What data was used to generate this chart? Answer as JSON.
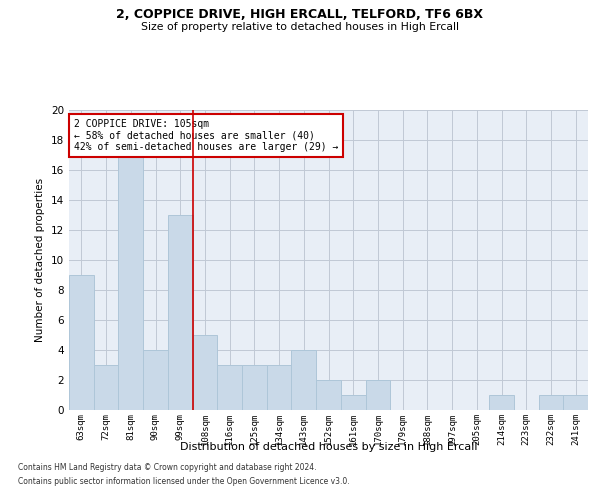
{
  "title1": "2, COPPICE DRIVE, HIGH ERCALL, TELFORD, TF6 6BX",
  "title2": "Size of property relative to detached houses in High Ercall",
  "xlabel": "Distribution of detached houses by size in High Ercall",
  "ylabel": "Number of detached properties",
  "categories": [
    "63sqm",
    "72sqm",
    "81sqm",
    "90sqm",
    "99sqm",
    "108sqm",
    "116sqm",
    "125sqm",
    "134sqm",
    "143sqm",
    "152sqm",
    "161sqm",
    "170sqm",
    "179sqm",
    "188sqm",
    "197sqm",
    "205sqm",
    "214sqm",
    "223sqm",
    "232sqm",
    "241sqm"
  ],
  "values": [
    9,
    3,
    17,
    4,
    13,
    5,
    3,
    3,
    3,
    4,
    2,
    1,
    2,
    0,
    0,
    0,
    0,
    1,
    0,
    1,
    1
  ],
  "bar_color": "#c9d9e8",
  "bar_edge_color": "#aec6d8",
  "vline_color": "#cc0000",
  "annotation_text": "2 COPPICE DRIVE: 105sqm\n← 58% of detached houses are smaller (40)\n42% of semi-detached houses are larger (29) →",
  "annotation_box_color": "#ffffff",
  "annotation_box_edge": "#cc0000",
  "ylim": [
    0,
    20
  ],
  "yticks": [
    0,
    2,
    4,
    6,
    8,
    10,
    12,
    14,
    16,
    18,
    20
  ],
  "plot_bg_color": "#e8eef6",
  "footer1": "Contains HM Land Registry data © Crown copyright and database right 2024.",
  "footer2": "Contains public sector information licensed under the Open Government Licence v3.0."
}
